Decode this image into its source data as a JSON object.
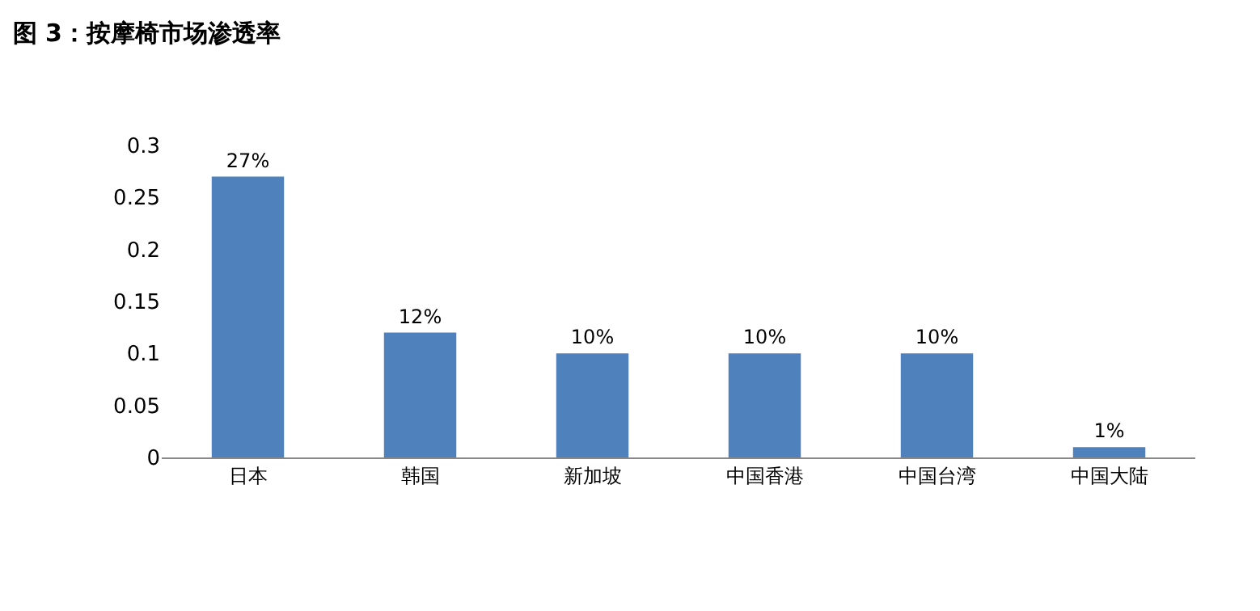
{
  "chart_data": {
    "type": "bar",
    "title": "图 3：按摩椅市场渗透率",
    "categories": [
      "日本",
      "韩国",
      "新加坡",
      "中国香港",
      "中国台湾",
      "中国大陆"
    ],
    "values": [
      0.27,
      0.12,
      0.1,
      0.1,
      0.1,
      0.01
    ],
    "value_labels": [
      "27%",
      "12%",
      "10%",
      "10%",
      "10%",
      "1%"
    ],
    "color": "#4f81bd",
    "ylim": [
      0,
      0.3
    ],
    "yticks": [
      0,
      0.05,
      0.1,
      0.15,
      0.2,
      0.25,
      0.3
    ],
    "grid": false
  }
}
